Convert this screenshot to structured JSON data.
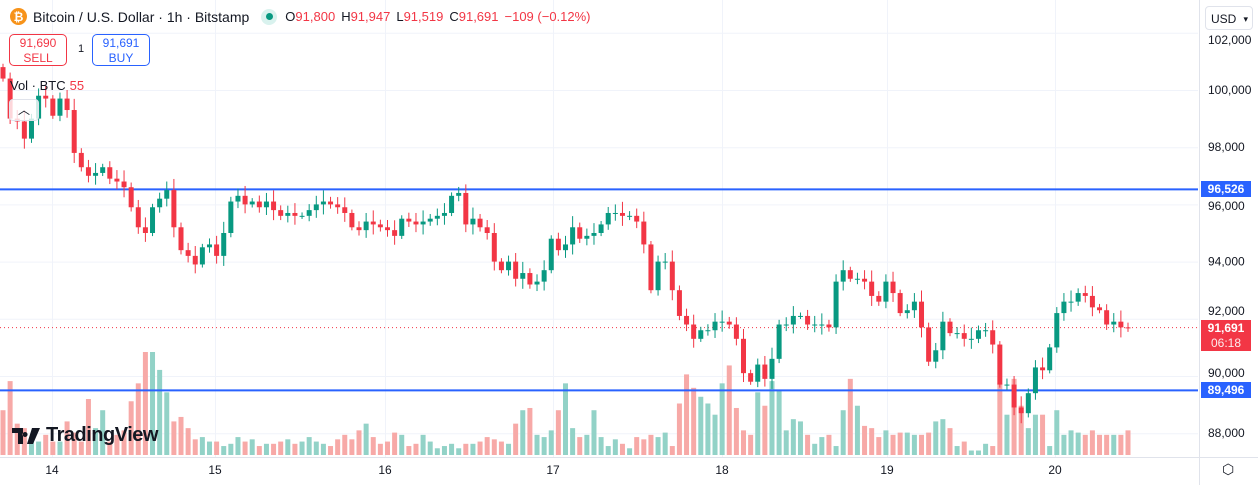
{
  "header": {
    "symbol_title": "Bitcoin / U.S. Dollar · 1h · Bitstamp",
    "coin_icon": "bitcoin-icon",
    "market_status": "open",
    "open_label": "O",
    "open": "91,800",
    "high_label": "H",
    "high": "91,947",
    "low_label": "L",
    "low": "91,519",
    "close_label": "C",
    "close": "91,691",
    "change": "−109 (−0.12%)"
  },
  "trade": {
    "sell_price": "91,690",
    "sell_label": "SELL",
    "quantity": "1",
    "buy_price": "91,691",
    "buy_label": "BUY"
  },
  "volume_legend": {
    "label": "Vol · BTC",
    "value": "55"
  },
  "currency_select": "USD",
  "branding": "TradingView",
  "price_tags": {
    "resistance": "96,526",
    "support": "89,496",
    "last_price": "91,691",
    "countdown": "06:18"
  },
  "colors": {
    "up": "#089981",
    "down": "#f23645",
    "line": "#2962ff"
  },
  "chart_data": {
    "type": "candlestick",
    "interval": "1h",
    "price_axis_ticks": [
      "88,000",
      "90,000",
      "92,000",
      "94,000",
      "96,000",
      "98,000",
      "100,000",
      "102,000"
    ],
    "price_tick_values": [
      88000,
      90000,
      92000,
      94000,
      96000,
      98000,
      100000,
      102000
    ],
    "time_axis_ticks": [
      "14",
      "15",
      "16",
      "17",
      "18",
      "19",
      "20"
    ],
    "horizontal_lines": [
      96526,
      89496
    ],
    "last_price": 91691,
    "first_open": 100800,
    "close": [
      100400,
      99000,
      98900,
      98300,
      99000,
      99800,
      99700,
      99100,
      99700,
      99300,
      97800,
      97300,
      97000,
      97100,
      97300,
      96900,
      96800,
      96600,
      95900,
      95200,
      95000,
      95900,
      96200,
      96500,
      95200,
      94400,
      94200,
      93900,
      94500,
      94600,
      94200,
      95000,
      96100,
      96300,
      96000,
      96100,
      95900,
      96100,
      95800,
      95600,
      95700,
      95600,
      95600,
      95800,
      96000,
      96100,
      96000,
      95900,
      95700,
      95200,
      95100,
      95400,
      95300,
      95200,
      95100,
      94900,
      95500,
      95400,
      95300,
      95400,
      95500,
      95600,
      95700,
      96300,
      96400,
      95300,
      95500,
      95200,
      95000,
      94000,
      93700,
      94000,
      93400,
      93600,
      93200,
      93300,
      93700,
      94800,
      94400,
      94600,
      95200,
      94800,
      94900,
      95000,
      95300,
      95700,
      95700,
      95600,
      95600,
      95400,
      94600,
      93000,
      94000,
      94000,
      93000,
      92100,
      91800,
      91300,
      91600,
      91600,
      91900,
      91900,
      91800,
      91300,
      90100,
      89800,
      90400,
      89900,
      90600,
      91800,
      91800,
      92100,
      92100,
      91800,
      91800,
      91800,
      91700,
      93300,
      93700,
      93400,
      93400,
      93300,
      92800,
      92600,
      93300,
      92900,
      92200,
      92300,
      92600,
      91700,
      90500,
      90900,
      91900,
      91500,
      91500,
      91300,
      91300,
      91600,
      91600,
      91100,
      89700,
      89700,
      88900,
      88700,
      89400,
      90300,
      90200,
      91000,
      92200,
      92600,
      92600,
      92900,
      92800,
      92400,
      92300,
      91800,
      91900,
      91700,
      91691
    ],
    "volume": [
      100,
      165,
      70,
      60,
      40,
      30,
      45,
      30,
      30,
      75,
      50,
      30,
      125,
      60,
      100,
      30,
      45,
      55,
      120,
      160,
      230,
      230,
      190,
      140,
      75,
      85,
      60,
      35,
      40,
      30,
      30,
      20,
      25,
      40,
      30,
      35,
      20,
      25,
      25,
      30,
      35,
      25,
      30,
      40,
      30,
      25,
      20,
      35,
      45,
      35,
      55,
      70,
      40,
      25,
      30,
      50,
      45,
      20,
      25,
      45,
      30,
      15,
      20,
      25,
      15,
      25,
      25,
      30,
      40,
      35,
      30,
      25,
      70,
      100,
      105,
      45,
      40,
      55,
      100,
      160,
      60,
      40,
      45,
      100,
      40,
      20,
      35,
      25,
      15,
      40,
      35,
      45,
      40,
      50,
      20,
      115,
      180,
      150,
      130,
      115,
      90,
      160,
      200,
      105,
      55,
      45,
      140,
      110,
      165,
      145,
      55,
      80,
      75,
      45,
      25,
      40,
      45,
      20,
      100,
      170,
      110,
      65,
      60,
      40,
      55,
      45,
      50,
      50,
      45,
      45,
      50,
      75,
      80,
      60,
      20,
      30,
      10,
      10,
      25,
      20,
      160,
      90,
      170,
      110,
      60,
      90,
      90,
      20,
      100,
      45,
      55,
      50,
      45,
      55,
      45,
      45,
      45,
      45,
      55
    ]
  }
}
